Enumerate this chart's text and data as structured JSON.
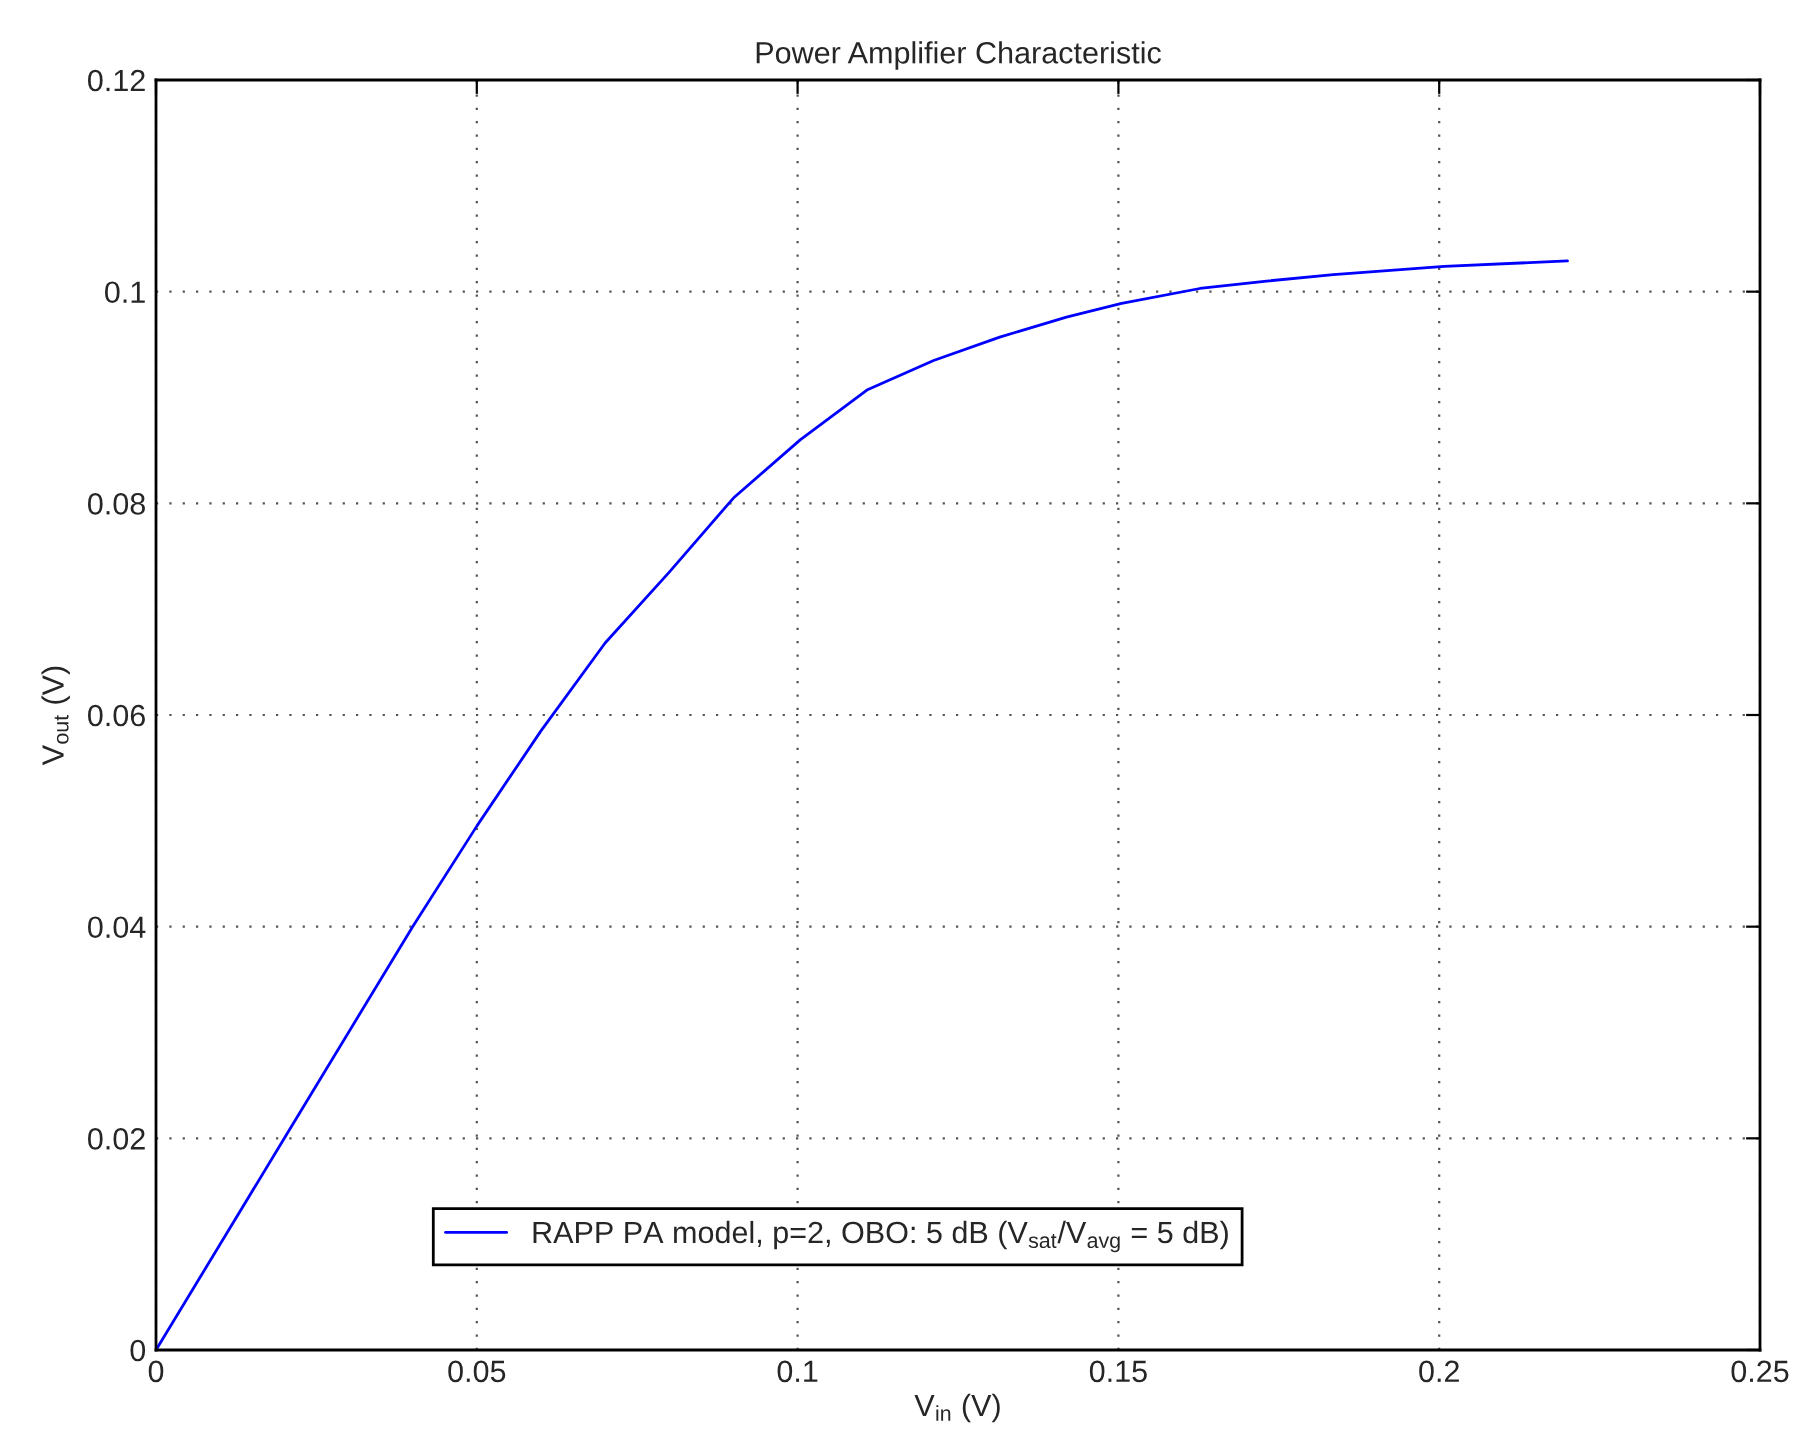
{
  "chart_data": {
    "type": "line",
    "title": "Power Amplifier Characteristic",
    "xlabel": "V$_{in}$ (V)",
    "ylabel": "V$_{out}$ (V)",
    "series": [
      {
        "name": "RAPP PA model, p=2, OBO: 5 dB (V$_{sat}$/V$_{avg}$ = 5 dB)",
        "color": "#0000ff",
        "x": [
          0,
          0.02,
          0.04,
          0.05,
          0.06,
          0.07,
          0.08,
          0.09,
          0.1004,
          0.1108,
          0.1212,
          0.1315,
          0.1419,
          0.1505,
          0.1627,
          0.1731,
          0.1835,
          0.2008,
          0.22
        ],
        "values": [
          0,
          0.02,
          0.04,
          0.0495,
          0.0585,
          0.0668,
          0.0735,
          0.0805,
          0.086,
          0.0907,
          0.0935,
          0.0957,
          0.0976,
          0.0989,
          0.1003,
          0.101,
          0.1016,
          0.1024,
          0.1029
        ]
      }
    ],
    "xlim": [
      0,
      0.25
    ],
    "xticks": [
      0,
      0.05,
      0.1,
      0.15,
      0.2,
      0.25
    ],
    "ylim": [
      0,
      0.12
    ],
    "yticks": [
      0,
      0.02,
      0.04,
      0.06,
      0.08,
      0.1,
      0.12
    ],
    "grid": true,
    "legend": "bottom",
    "line_style": "solid"
  }
}
